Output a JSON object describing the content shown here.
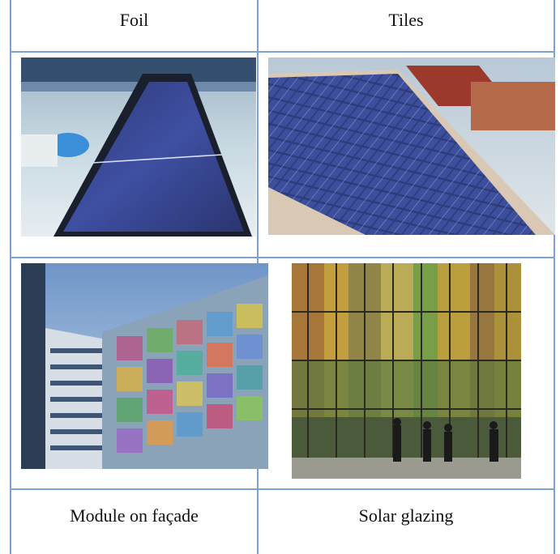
{
  "table": {
    "header": [
      "Foil",
      "Tiles"
    ],
    "footer": [
      "Module on façade",
      "Solar glazing"
    ]
  },
  "images": [
    {
      "name": "foil-photo",
      "subject": "flexible solar foil being held up"
    },
    {
      "name": "tiles-photo",
      "subject": "solar roof tiles"
    },
    {
      "name": "facade-photo",
      "subject": "colored solar modules on building façade"
    },
    {
      "name": "glazing-photo",
      "subject": "colored solar glazing wall"
    }
  ],
  "colors": {
    "border": "#7aa3d3"
  }
}
